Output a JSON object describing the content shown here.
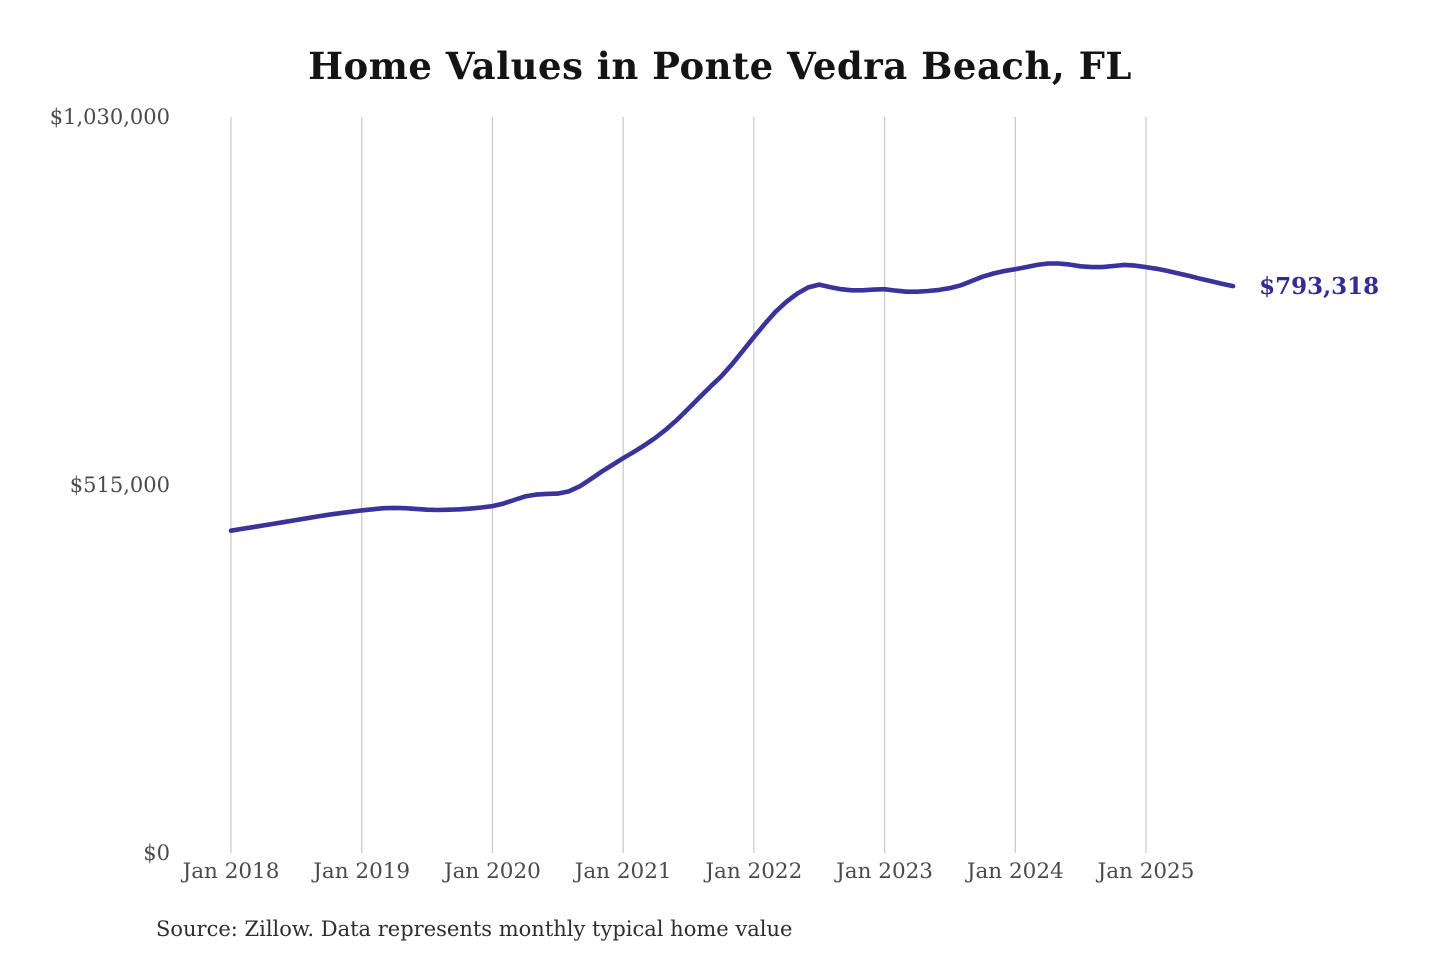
{
  "page": {
    "title": "Home Values in Ponte Vedra Beach, FL",
    "source_note": "Source: Zillow. Data represents monthly typical home value",
    "end_value_label": "$793,318"
  },
  "colors": {
    "background": "#ffffff",
    "line": "#39339b",
    "end_label_text": "#322c93",
    "gridline": "#cccccc",
    "axis_text": "#4a4a4a",
    "title_text": "#141414",
    "source_text": "#2e2e2e"
  },
  "chart_data": {
    "type": "line",
    "title": "Home Values in Ponte Vedra Beach, FL",
    "xlabel": "",
    "ylabel": "",
    "ylim": [
      0,
      1030000
    ],
    "grid": "vertical-only",
    "legend": "none",
    "y_ticks": [
      {
        "value": 0,
        "label": "$0"
      },
      {
        "value": 515000,
        "label": "$515,000"
      },
      {
        "value": 1030000,
        "label": "$1,030,000"
      }
    ],
    "x_ticks": [
      "Jan 2018",
      "Jan 2019",
      "Jan 2020",
      "Jan 2021",
      "Jan 2022",
      "Jan 2023",
      "Jan 2024",
      "Jan 2025"
    ],
    "series": [
      {
        "name": "Monthly typical home value",
        "final_value": 793318,
        "final_value_label": "$793,318",
        "x": [
          "Jan 2018",
          "Feb 2018",
          "Mar 2018",
          "Apr 2018",
          "May 2018",
          "Jun 2018",
          "Jul 2018",
          "Aug 2018",
          "Sep 2018",
          "Oct 2018",
          "Nov 2018",
          "Dec 2018",
          "Jan 2019",
          "Feb 2019",
          "Mar 2019",
          "Apr 2019",
          "May 2019",
          "Jun 2019",
          "Jul 2019",
          "Aug 2019",
          "Sep 2019",
          "Oct 2019",
          "Nov 2019",
          "Dec 2019",
          "Jan 2020",
          "Feb 2020",
          "Mar 2020",
          "Apr 2020",
          "May 2020",
          "Jun 2020",
          "Jul 2020",
          "Aug 2020",
          "Sep 2020",
          "Oct 2020",
          "Nov 2020",
          "Dec 2020",
          "Jan 2021",
          "Feb 2021",
          "Mar 2021",
          "Apr 2021",
          "May 2021",
          "Jun 2021",
          "Jul 2021",
          "Aug 2021",
          "Sep 2021",
          "Oct 2021",
          "Nov 2021",
          "Dec 2021",
          "Jan 2022",
          "Feb 2022",
          "Mar 2022",
          "Apr 2022",
          "May 2022",
          "Jun 2022",
          "Jul 2022",
          "Aug 2022",
          "Sep 2022",
          "Oct 2022",
          "Nov 2022",
          "Dec 2022",
          "Jan 2023",
          "Feb 2023",
          "Mar 2023",
          "Apr 2023",
          "May 2023",
          "Jun 2023",
          "Jul 2023",
          "Aug 2023",
          "Sep 2023",
          "Oct 2023",
          "Nov 2023",
          "Dec 2023",
          "Jan 2024",
          "Feb 2024",
          "Mar 2024",
          "Apr 2024",
          "May 2024",
          "Jun 2024",
          "Jul 2024",
          "Aug 2024",
          "Sep 2024",
          "Oct 2024",
          "Nov 2024",
          "Dec 2024",
          "Jan 2025",
          "Feb 2025",
          "Mar 2025",
          "Apr 2025",
          "May 2025",
          "Jun 2025",
          "Jul 2025",
          "Aug 2025",
          "Sep 2025"
        ],
        "values": [
          451000,
          453500,
          456000,
          458500,
          461000,
          463500,
          466000,
          468500,
          471000,
          473500,
          475500,
          477500,
          479500,
          481000,
          482500,
          483000,
          482500,
          481500,
          480500,
          480000,
          480500,
          481000,
          482000,
          483500,
          485500,
          489000,
          494000,
          499000,
          501500,
          502500,
          503000,
          506000,
          513000,
          523000,
          533500,
          543000,
          552500,
          561500,
          571000,
          581500,
          593500,
          607000,
          622000,
          637500,
          652500,
          667000,
          684000,
          703000,
          722000,
          740500,
          757500,
          771500,
          783000,
          791500,
          795500,
          792000,
          789000,
          787500,
          787500,
          788500,
          789000,
          787000,
          785500,
          785500,
          786500,
          788000,
          790500,
          794500,
          800500,
          806500,
          811000,
          814500,
          817000,
          820000,
          823000,
          825000,
          825000,
          823500,
          821000,
          820000,
          820000,
          821500,
          823000,
          822000,
          820000,
          817500,
          814500,
          811000,
          807500,
          803500,
          800000,
          796500,
          793318
        ]
      }
    ]
  }
}
